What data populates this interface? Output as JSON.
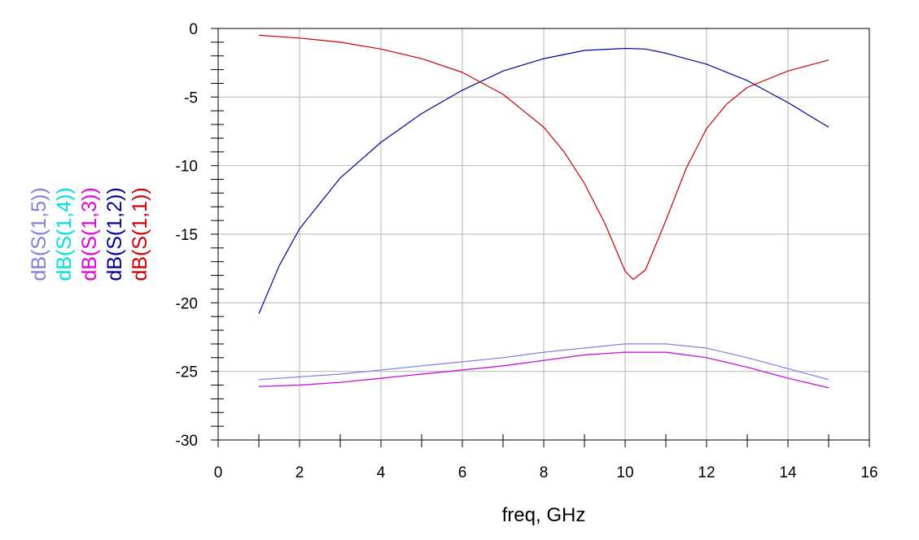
{
  "chart_data": {
    "type": "line",
    "xlabel": "freq, GHz",
    "ylabel": "",
    "xlim": [
      0,
      16
    ],
    "ylim": [
      -30,
      0
    ],
    "x_ticks": [
      0,
      2,
      4,
      6,
      8,
      10,
      12,
      14,
      16
    ],
    "y_ticks": [
      0,
      -5,
      -10,
      -15,
      -20,
      -25,
      -30
    ],
    "grid": true,
    "legend_placement": "left, rotated vertical",
    "series": [
      {
        "name": "dB(S(1,5))",
        "color": "#8080e0",
        "x": [
          1,
          2,
          3,
          4,
          5,
          6,
          7,
          8,
          9,
          10,
          11,
          12,
          13,
          14,
          15
        ],
        "y": [
          -25.6,
          -25.4,
          -25.2,
          -24.9,
          -24.6,
          -24.3,
          -24.0,
          -23.6,
          -23.3,
          -23.0,
          -23.0,
          -23.3,
          -24.0,
          -24.8,
          -25.6
        ]
      },
      {
        "name": "dB(S(1,4))",
        "color": "#00e0e0",
        "x": [
          1,
          2,
          3,
          4,
          5,
          6,
          7,
          8,
          9,
          10,
          11,
          12,
          13,
          14,
          15
        ],
        "y": [
          -26.1,
          -26.0,
          -25.8,
          -25.5,
          -25.2,
          -24.9,
          -24.6,
          -24.2,
          -23.8,
          -23.6,
          -23.6,
          -24.0,
          -24.7,
          -25.5,
          -26.2
        ]
      },
      {
        "name": "dB(S(1,3))",
        "color": "#e000e0",
        "x": [
          1,
          2,
          3,
          4,
          5,
          6,
          7,
          8,
          9,
          10,
          11,
          12,
          13,
          14,
          15
        ],
        "y": [
          -26.1,
          -26.0,
          -25.8,
          -25.5,
          -25.2,
          -24.9,
          -24.6,
          -24.2,
          -23.8,
          -23.6,
          -23.6,
          -24.0,
          -24.7,
          -25.5,
          -26.2
        ]
      },
      {
        "name": "dB(S(1,2))",
        "color": "#0000a0",
        "x": [
          1,
          1.5,
          2,
          3,
          4,
          5,
          6,
          7,
          8,
          9,
          10,
          10.5,
          11,
          12,
          13,
          14,
          15
        ],
        "y": [
          -20.8,
          -17.3,
          -14.6,
          -10.9,
          -8.3,
          -6.2,
          -4.5,
          -3.1,
          -2.2,
          -1.6,
          -1.45,
          -1.5,
          -1.8,
          -2.6,
          -3.8,
          -5.4,
          -7.2
        ]
      },
      {
        "name": "dB(S(1,1))",
        "color": "#cc0000",
        "x": [
          1,
          2,
          3,
          4,
          5,
          6,
          7,
          8,
          8.5,
          9,
          9.5,
          9.8,
          10,
          10.2,
          10.5,
          11,
          11.5,
          12,
          12.5,
          13,
          14,
          15
        ],
        "y": [
          -0.5,
          -0.7,
          -1.0,
          -1.5,
          -2.2,
          -3.2,
          -4.8,
          -7.2,
          -9.0,
          -11.3,
          -14.2,
          -16.3,
          -17.7,
          -18.3,
          -17.6,
          -14.0,
          -10.2,
          -7.3,
          -5.5,
          -4.3,
          -3.1,
          -2.3
        ]
      }
    ]
  }
}
